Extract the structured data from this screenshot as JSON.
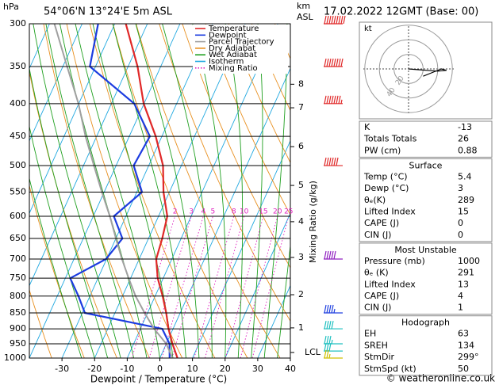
{
  "header": {
    "title": "54°06'N 13°24'E 5m ASL",
    "date": "17.02.2022 12GMT (Base: 00)",
    "pressure_unit": "hPa",
    "height_unit": "km",
    "height_ref": "ASL"
  },
  "chart_data": {
    "type": "skewt",
    "xlabel": "Dewpoint / Temperature (°C)",
    "ylabel": "Mixing Ratio (g/kg)",
    "xlim": [
      -40,
      40
    ],
    "xticks": [
      -30,
      -20,
      -10,
      0,
      10,
      20,
      30,
      40
    ],
    "ylim": [
      1000,
      300
    ],
    "yticks": [
      300,
      350,
      400,
      450,
      500,
      550,
      600,
      650,
      700,
      750,
      800,
      850,
      900,
      950,
      1000
    ],
    "log_y": true,
    "pressure": [
      1000,
      950,
      900,
      850,
      800,
      750,
      700,
      650,
      600,
      550,
      500,
      450,
      400,
      350,
      300
    ],
    "series": [
      {
        "name": "Temperature",
        "color": "#e02828",
        "values": [
          5.4,
          1.9,
          -1.4,
          -4.3,
          -7.7,
          -11.7,
          -14.8,
          -15.8,
          -17.3,
          -21.8,
          -25.6,
          -31.9,
          -40.1,
          -47.1,
          -56.6
        ]
      },
      {
        "name": "Dewpoint",
        "color": "#1c3ce0",
        "values": [
          3,
          1.0,
          -3.3,
          -29.2,
          -33.5,
          -38.5,
          -30.2,
          -28,
          -33.7,
          -28.4,
          -34.6,
          -33.7,
          -43,
          -61.7,
          -65.1
        ]
      },
      {
        "name": "Parcel Trajectory",
        "color": "#a0a0a0",
        "values": [
          3.9,
          0,
          -5.8,
          -10.9,
          -16,
          -20.6,
          -25.3,
          -30,
          -34.9,
          -40.7,
          -46.8,
          -53.4,
          -60.1,
          -68.7,
          -78.5
        ]
      }
    ],
    "reference_lines": [
      {
        "name": "Dry Adiabat",
        "color": "#e89020"
      },
      {
        "name": "Wet Adiabat",
        "color": "#20a020"
      },
      {
        "name": "Isotherm",
        "color": "#20a8e0"
      },
      {
        "name": "Mixing Ratio",
        "color": "#e020c0"
      }
    ],
    "mixing_ratios": [
      2,
      3,
      4,
      5,
      8,
      10,
      15,
      20,
      25
    ],
    "height_ticks": [
      8,
      7,
      6,
      5,
      4,
      3,
      2,
      1
    ],
    "height_tick_pressures": [
      373,
      406,
      467,
      537,
      612,
      696,
      796,
      897
    ],
    "lcl": {
      "label": "LCL",
      "pressure": 980
    },
    "winds": {
      "pressure": [
        300,
        350,
        400,
        500,
        700,
        850,
        900,
        950,
        975,
        1000
      ],
      "speed": [
        90,
        80,
        75,
        60,
        50,
        45,
        40,
        35,
        30,
        25
      ],
      "colors": [
        "#e02828",
        "#e02828",
        "#e02828",
        "#e02828",
        "#9020c0",
        "#2040e0",
        "#20c0c0",
        "#20c0c0",
        "#20c0c0",
        "#d0c000"
      ]
    }
  },
  "hodograph": {
    "unit": "kt",
    "rings": [
      20,
      40
    ],
    "u": [
      0,
      12,
      25,
      40,
      52,
      45,
      30,
      20
    ],
    "v": [
      0,
      -1,
      -2,
      -3,
      -2,
      0,
      -6,
      -10
    ]
  },
  "indices": {
    "sections": [
      {
        "rows": [
          [
            "K",
            -13
          ],
          [
            "Totals Totals",
            26
          ],
          [
            "PW (cm)",
            0.88
          ]
        ]
      },
      {
        "title": "Surface",
        "rows": [
          [
            "Temp (°C)",
            5.4
          ],
          [
            "Dewp (°C)",
            3
          ],
          [
            "θₑ(K)",
            289
          ],
          [
            "Lifted Index",
            15
          ],
          [
            "CAPE (J)",
            0
          ],
          [
            "CIN (J)",
            0
          ]
        ]
      },
      {
        "title": "Most Unstable",
        "rows": [
          [
            "Pressure (mb)",
            1000
          ],
          [
            "θₑ (K)",
            291
          ],
          [
            "Lifted Index",
            13
          ],
          [
            "CAPE (J)",
            4
          ],
          [
            "CIN (J)",
            1
          ]
        ]
      },
      {
        "title": "Hodograph",
        "rows": [
          [
            "EH",
            63
          ],
          [
            "SREH",
            134
          ],
          [
            "StmDir",
            "299°"
          ],
          [
            "StmSpd (kt)",
            50
          ]
        ]
      }
    ]
  },
  "footer": "© weatheronline.co.uk"
}
